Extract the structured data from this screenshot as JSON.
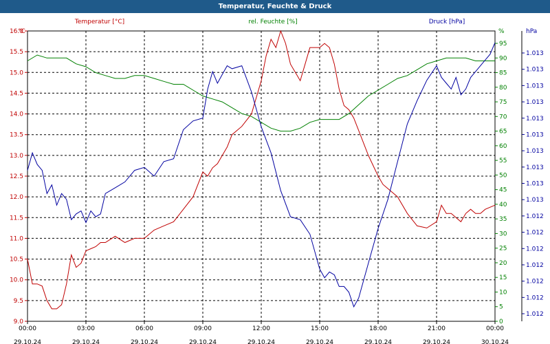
{
  "window": {
    "title": "Temperatur, Feuchte & Druck"
  },
  "chart_data": {
    "type": "line",
    "title": "Temperatur, Feuchte & Druck",
    "grid": true,
    "x": {
      "ticks": [
        "00:00",
        "03:00",
        "06:00",
        "09:00",
        "12:00",
        "15:00",
        "18:00",
        "21:00",
        "00:00"
      ],
      "dates": [
        "29.10.24",
        "29.10.24",
        "29.10.24",
        "29.10.24",
        "29.10.24",
        "29.10.24",
        "29.10.24",
        "29.10.24",
        "30.10.24"
      ],
      "range_hours": [
        0,
        24
      ]
    },
    "axes": {
      "left": {
        "unit": "°C",
        "color": "#c00000",
        "range": [
          9.0,
          16.0
        ],
        "ticks": [
          "16.0",
          "15.5",
          "15.0",
          "14.5",
          "14.0",
          "13.5",
          "13.0",
          "12.5",
          "12.0",
          "11.5",
          "11.0",
          "10.5",
          "10.0",
          "9.5",
          "9.0"
        ]
      },
      "humidity": {
        "unit": "%",
        "color": "#008000",
        "range": [
          0,
          95
        ],
        "ticks": [
          "95",
          "90",
          "85",
          "80",
          "75",
          "70",
          "65",
          "60",
          "55",
          "50",
          "45",
          "40",
          "35",
          "30",
          "25",
          "20",
          "15",
          "10",
          "5",
          "0"
        ]
      },
      "pressure": {
        "unit": "hPa",
        "color": "#0000a0",
        "ticks": [
          "1.013",
          "1.013",
          "1.013",
          "1.013",
          "1.013",
          "1.013",
          "1.013",
          "1.013",
          "1.013",
          "1.013",
          "1.012",
          "1.012",
          "1.012",
          "1.012",
          "1.012",
          "1.012",
          "1.012"
        ]
      }
    },
    "legend": [
      "Temperatur [°C]",
      "rel. Feuchte [%]",
      "Druck [hPa]"
    ],
    "series": [
      {
        "name": "Temperatur [°C]",
        "color": "#c00000",
        "axis": "left",
        "x": [
          0,
          0.25,
          0.5,
          0.75,
          1,
          1.25,
          1.5,
          1.75,
          2,
          2.25,
          2.5,
          2.75,
          3,
          3.25,
          3.5,
          3.75,
          4,
          4.5,
          5,
          5.5,
          6,
          6.5,
          7,
          7.5,
          8,
          8.5,
          9,
          9.25,
          9.5,
          9.75,
          10,
          10.25,
          10.5,
          11,
          11.5,
          12,
          12.25,
          12.5,
          12.75,
          13,
          13.25,
          13.5,
          14,
          14.25,
          14.5,
          15,
          15.25,
          15.5,
          15.75,
          16,
          16.25,
          16.5,
          16.75,
          17,
          17.5,
          18,
          18.25,
          18.5,
          19,
          19.5,
          20,
          20.5,
          21,
          21.25,
          21.5,
          21.75,
          22,
          22.25,
          22.5,
          22.75,
          23,
          23.25,
          23.5,
          24
        ],
        "values": [
          10.5,
          9.9,
          9.9,
          9.85,
          9.5,
          9.3,
          9.3,
          9.4,
          9.9,
          10.6,
          10.3,
          10.4,
          10.7,
          10.75,
          10.8,
          10.9,
          10.9,
          11.05,
          10.9,
          11.0,
          11.0,
          11.2,
          11.3,
          11.4,
          11.7,
          12.0,
          12.6,
          12.5,
          12.7,
          12.8,
          13.0,
          13.2,
          13.5,
          13.7,
          14.0,
          14.8,
          15.4,
          15.8,
          15.6,
          16.0,
          15.7,
          15.2,
          14.8,
          15.2,
          15.6,
          15.6,
          15.7,
          15.6,
          15.2,
          14.6,
          14.2,
          14.1,
          13.9,
          13.6,
          13.0,
          12.5,
          12.3,
          12.2,
          12.0,
          11.6,
          11.3,
          11.25,
          11.4,
          11.8,
          11.6,
          11.6,
          11.5,
          11.4,
          11.6,
          11.7,
          11.6,
          11.6,
          11.7,
          11.8
        ]
      },
      {
        "name": "rel. Feuchte [%]",
        "color": "#008000",
        "axis": "humidity",
        "x": [
          0,
          0.5,
          1,
          1.5,
          2,
          2.5,
          3,
          3.5,
          4,
          4.5,
          5,
          5.5,
          6,
          6.5,
          7,
          7.5,
          8,
          8.5,
          9,
          9.5,
          10,
          10.5,
          11,
          11.5,
          12,
          12.5,
          13,
          13.5,
          14,
          14.5,
          15,
          15.5,
          16,
          16.5,
          17,
          17.5,
          18,
          18.5,
          19,
          19.5,
          20,
          20.5,
          21,
          21.5,
          22,
          22.5,
          23,
          23.5,
          24
        ],
        "values": [
          89,
          91,
          90,
          90,
          90,
          88,
          87,
          85,
          84,
          83,
          83,
          84,
          84,
          83,
          82,
          81,
          81,
          79,
          77,
          76,
          75,
          73,
          71,
          70,
          68,
          66,
          65,
          65,
          66,
          68,
          69,
          69,
          69,
          71,
          74,
          77,
          79,
          81,
          83,
          84,
          86,
          88,
          89,
          90,
          90,
          90,
          89,
          89,
          89
        ]
      },
      {
        "name": "Druck [hPa]",
        "color": "#0000a0",
        "axis": "pressure",
        "x": [
          0,
          0.25,
          0.5,
          0.75,
          1,
          1.25,
          1.5,
          1.75,
          2,
          2.25,
          2.5,
          2.75,
          3,
          3.25,
          3.5,
          3.75,
          4,
          4.5,
          5,
          5.5,
          6,
          6.5,
          7,
          7.5,
          8,
          8.5,
          9,
          9.25,
          9.5,
          9.75,
          10,
          10.25,
          10.5,
          11,
          11.5,
          12,
          12.5,
          13,
          13.5,
          14,
          14.5,
          15,
          15.25,
          15.5,
          15.75,
          16,
          16.25,
          16.5,
          16.75,
          17,
          17.5,
          18,
          18.5,
          19,
          19.5,
          20,
          20.5,
          21,
          21.25,
          21.5,
          21.75,
          22,
          22.25,
          22.5,
          22.75,
          23,
          23.25,
          23.5,
          23.75,
          24
        ],
        "values": [
          0.52,
          0.58,
          0.54,
          0.52,
          0.44,
          0.47,
          0.4,
          0.44,
          0.42,
          0.35,
          0.37,
          0.38,
          0.34,
          0.38,
          0.36,
          0.37,
          0.44,
          0.46,
          0.48,
          0.52,
          0.53,
          0.5,
          0.55,
          0.56,
          0.66,
          0.69,
          0.7,
          0.8,
          0.86,
          0.82,
          0.85,
          0.88,
          0.87,
          0.88,
          0.79,
          0.67,
          0.58,
          0.45,
          0.36,
          0.35,
          0.3,
          0.18,
          0.15,
          0.17,
          0.16,
          0.12,
          0.12,
          0.1,
          0.05,
          0.08,
          0.2,
          0.32,
          0.42,
          0.55,
          0.68,
          0.76,
          0.83,
          0.88,
          0.84,
          0.82,
          0.8,
          0.84,
          0.78,
          0.8,
          0.84,
          0.86,
          0.88,
          0.9,
          0.92,
          0.96
        ]
      }
    ]
  }
}
